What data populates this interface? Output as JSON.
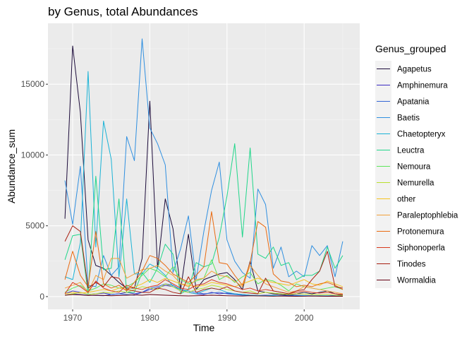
{
  "chart_data": {
    "type": "line",
    "title": "by Genus, total Abundances",
    "xlabel": "Time",
    "ylabel": "Abundance_sum",
    "xlim": [
      1966.8,
      2007.2
    ],
    "ylim": [
      -900,
      19300
    ],
    "x_ticks": [
      1970,
      1980,
      1990,
      2000
    ],
    "y_ticks": [
      0,
      5000,
      10000,
      15000
    ],
    "x_minor_ticks": [
      1975,
      1985,
      1995,
      2005
    ],
    "y_minor_ticks": [
      2500,
      7500,
      12500,
      17500
    ],
    "grid": true,
    "legend": {
      "title": "Genus_grouped",
      "placement": "right"
    },
    "x": [
      1969,
      1970,
      1971,
      1972,
      1973,
      1974,
      1975,
      1976,
      1977,
      1978,
      1979,
      1980,
      1981,
      1982,
      1983,
      1984,
      1985,
      1986,
      1987,
      1988,
      1989,
      1990,
      1991,
      1992,
      1993,
      1994,
      1995,
      1996,
      1997,
      1998,
      1999,
      2000,
      2001,
      2002,
      2003,
      2004,
      2005
    ],
    "series": [
      {
        "name": "Agapetus",
        "color": "#1c0b3a",
        "values": [
          5500,
          17700,
          13000,
          4000,
          2200,
          2000,
          1500,
          1000,
          600,
          600,
          2700,
          13800,
          2000,
          6900,
          4800,
          500,
          4400,
          500,
          1200,
          1400,
          1600,
          1700,
          1200,
          500,
          2500,
          400,
          300,
          200,
          150,
          100,
          200,
          300,
          200,
          300,
          400,
          200,
          100
        ]
      },
      {
        "name": "Amphinemura",
        "color": "#3a2ac2",
        "values": [
          200,
          400,
          300,
          150,
          200,
          250,
          150,
          200,
          300,
          200,
          300,
          500,
          600,
          800,
          700,
          400,
          300,
          200,
          150,
          300,
          200,
          250,
          200,
          150,
          100,
          80,
          100,
          80,
          60,
          80,
          100,
          70,
          50,
          60,
          50,
          80,
          50
        ]
      },
      {
        "name": "Apatania",
        "color": "#3467d6",
        "values": [
          100,
          200,
          150,
          100,
          80,
          60,
          150,
          200,
          150,
          100,
          300,
          600,
          700,
          900,
          800,
          500,
          400,
          300,
          200,
          250,
          300,
          200,
          150,
          100,
          80,
          60,
          80,
          100,
          60,
          50,
          60,
          80,
          60,
          50,
          60,
          40,
          30
        ]
      },
      {
        "name": "Baetis",
        "color": "#2f8fe0",
        "values": [
          8200,
          5100,
          9200,
          800,
          700,
          2900,
          1500,
          2100,
          11300,
          9600,
          18200,
          11900,
          10800,
          9300,
          1700,
          3400,
          5700,
          1200,
          4600,
          7500,
          9500,
          4000,
          2500,
          1700,
          1300,
          7600,
          6500,
          2000,
          3500,
          1400,
          1800,
          1400,
          3600,
          2900,
          3600,
          1400,
          3900
        ]
      },
      {
        "name": "Chaetopteryx",
        "color": "#1ab3d6",
        "values": [
          1400,
          1200,
          3800,
          15900,
          3500,
          12400,
          9700,
          1400,
          6900,
          1600,
          1600,
          2300,
          2000,
          1500,
          700,
          500,
          300,
          200,
          400,
          600,
          500,
          300,
          200,
          150,
          100,
          80,
          60,
          80,
          50,
          40,
          50,
          60,
          40,
          50,
          40,
          30,
          20
        ]
      },
      {
        "name": "Leuctra",
        "color": "#20d68a",
        "values": [
          2600,
          4300,
          4400,
          200,
          8500,
          1900,
          2000,
          6900,
          300,
          300,
          1700,
          1000,
          2000,
          3700,
          3000,
          200,
          500,
          2400,
          2100,
          2300,
          4200,
          7100,
          10800,
          4200,
          10500,
          3000,
          2700,
          3500,
          2200,
          2400,
          1200,
          1500,
          1500,
          1800,
          3500,
          2000,
          2900
        ]
      },
      {
        "name": "Nemoura",
        "color": "#5ce65a",
        "values": [
          300,
          600,
          800,
          400,
          600,
          900,
          800,
          600,
          700,
          1000,
          1500,
          2000,
          1800,
          1400,
          2100,
          1200,
          900,
          1100,
          1300,
          2600,
          1200,
          1500,
          1000,
          1400,
          1700,
          900,
          1200,
          1100,
          800,
          400,
          900,
          700,
          600,
          500,
          600,
          700,
          500
        ]
      },
      {
        "name": "Nemurella",
        "color": "#b8e02e",
        "values": [
          100,
          200,
          300,
          150,
          200,
          300,
          250,
          400,
          300,
          500,
          700,
          600,
          500,
          900,
          700,
          400,
          300,
          500,
          600,
          800,
          700,
          500,
          400,
          300,
          400,
          200,
          300,
          250,
          200,
          150,
          200,
          180,
          150,
          120,
          150,
          100,
          80
        ]
      },
      {
        "name": "other",
        "color": "#f5c21e",
        "values": [
          200,
          300,
          250,
          300,
          400,
          500,
          400,
          600,
          500,
          700,
          900,
          1200,
          1000,
          1300,
          1100,
          900,
          800,
          700,
          800,
          1000,
          900,
          800,
          700,
          900,
          1100,
          1300,
          1100,
          1000,
          900,
          800,
          1000,
          1200,
          900,
          800,
          1100,
          900,
          700
        ]
      },
      {
        "name": "Paraleptophlebia",
        "color": "#f2a03a",
        "values": [
          600,
          800,
          1000,
          300,
          1500,
          1200,
          2700,
          2700,
          1300,
          1600,
          1900,
          2000,
          2200,
          1800,
          1500,
          900,
          700,
          1200,
          1300,
          1800,
          1500,
          1400,
          1100,
          700,
          2200,
          1500,
          900,
          700,
          500,
          300,
          400,
          700,
          600,
          500,
          400,
          300,
          200
        ]
      },
      {
        "name": "Protonemura",
        "color": "#ea6a10",
        "values": [
          1200,
          3200,
          1500,
          700,
          4600,
          900,
          600,
          800,
          400,
          1000,
          1800,
          2900,
          2700,
          2200,
          1600,
          1300,
          1000,
          1500,
          2100,
          6000,
          2400,
          2300,
          1500,
          800,
          2400,
          5300,
          4900,
          1600,
          1100,
          1000,
          700,
          800,
          700,
          900,
          1000,
          800,
          500
        ]
      },
      {
        "name": "Siphonoperla",
        "color": "#d9381c",
        "values": [
          200,
          1000,
          700,
          300,
          1100,
          600,
          400,
          300,
          800,
          600,
          500,
          700,
          800,
          1200,
          900,
          600,
          500,
          800,
          900,
          1200,
          1000,
          900,
          700,
          500,
          600,
          400,
          500,
          400,
          300,
          200,
          300,
          400,
          300,
          250,
          300,
          200,
          150
        ]
      },
      {
        "name": "Tinodes",
        "color": "#a81e10",
        "values": [
          3900,
          5000,
          4600,
          600,
          1000,
          700,
          1400,
          1300,
          500,
          400,
          300,
          300,
          600,
          500,
          300,
          200,
          1400,
          300,
          500,
          600,
          500,
          700,
          400,
          300,
          250,
          200,
          1300,
          400,
          300,
          200,
          400,
          500,
          1200,
          1800,
          3200,
          700,
          600
        ]
      },
      {
        "name": "Wormaldia",
        "color": "#660012",
        "values": [
          100,
          150,
          120,
          80,
          100,
          80,
          60,
          80,
          100,
          120,
          100,
          150,
          120,
          100,
          80,
          60,
          50,
          60,
          80,
          100,
          80,
          60,
          50,
          40,
          60,
          50,
          40,
          30,
          40,
          30,
          20,
          30,
          40,
          30,
          20,
          30,
          20
        ]
      }
    ]
  }
}
